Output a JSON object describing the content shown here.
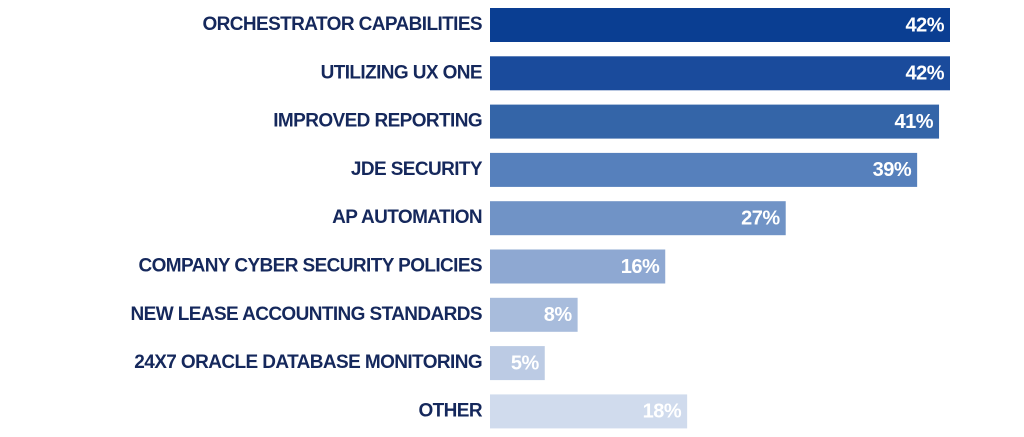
{
  "chart_data": {
    "type": "hbar",
    "categories": [
      "ORCHESTRATOR CAPABILITIES",
      "UTILIZING UX ONE",
      "IMPROVED REPORTING",
      "JDE SECURITY",
      "AP AUTOMATION",
      "COMPANY CYBER SECURITY POLICIES",
      "NEW LEASE ACCOUNTING STANDARDS",
      "24X7 ORACLE DATABASE MONITORING",
      "OTHER"
    ],
    "values": [
      42,
      42,
      41,
      39,
      27,
      16,
      8,
      5,
      18
    ],
    "value_labels": [
      "42%",
      "42%",
      "41%",
      "39%",
      "27%",
      "16%",
      "8%",
      "5%",
      "18%"
    ],
    "colors": [
      "#0a3e92",
      "#1a4b9c",
      "#3465a8",
      "#5680bc",
      "#7093c6",
      "#8ea8d2",
      "#a8bcdc",
      "#bccbe4",
      "#d0dbed"
    ]
  }
}
